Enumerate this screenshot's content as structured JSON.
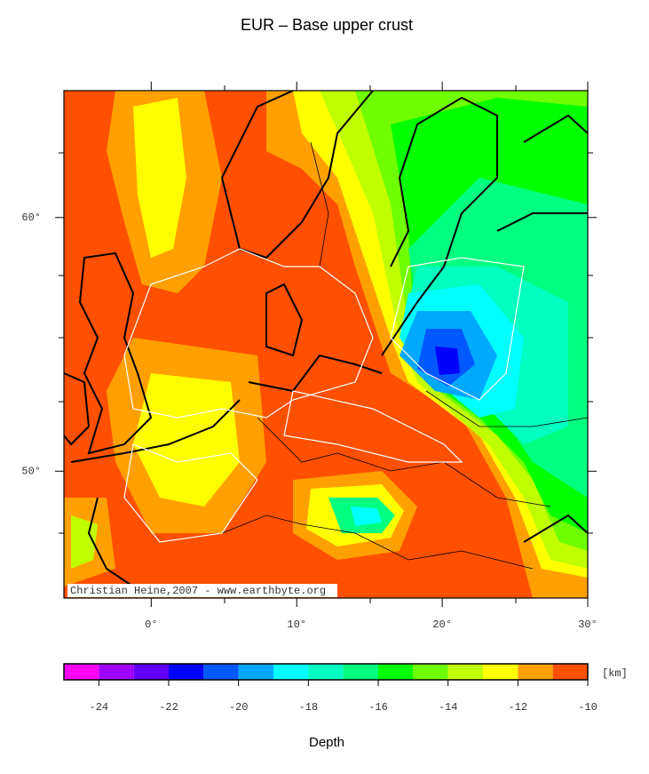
{
  "title": "EUR – Base upper crust",
  "map": {
    "lon_range": [
      -6,
      30
    ],
    "lat_range": [
      45,
      65
    ],
    "xticks": [
      {
        "value": 0,
        "label": "0°"
      },
      {
        "value": 10,
        "label": "10°"
      },
      {
        "value": 20,
        "label": "20°"
      },
      {
        "value": 30,
        "label": "30°"
      }
    ],
    "yticks": [
      {
        "value": 50,
        "label": "50°"
      },
      {
        "value": 60,
        "label": "60°"
      }
    ],
    "credit": "Christian Heine,2007 - www.earthbyte.org"
  },
  "colorbar": {
    "levels": [
      -25,
      -24,
      -23,
      -22,
      -21,
      -20,
      -19,
      -18,
      -17,
      -16,
      -15,
      -14,
      -13,
      -12,
      -11,
      -10
    ],
    "colors": [
      "#ff00ff",
      "#a000ff",
      "#6000ff",
      "#0000ff",
      "#0058ff",
      "#00a8ff",
      "#00ffff",
      "#00ffc0",
      "#00ff80",
      "#00ff00",
      "#70ff00",
      "#c0ff00",
      "#ffff00",
      "#ffa000",
      "#ff5000"
    ],
    "ticks": [
      -24,
      -22,
      -20,
      -18,
      -16,
      -14,
      -12,
      -10
    ],
    "unit": "[km]",
    "label": "Depth"
  }
}
